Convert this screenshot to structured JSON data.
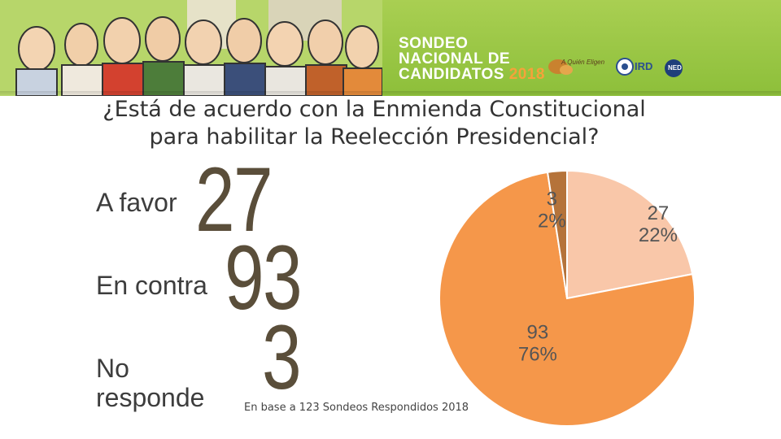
{
  "header": {
    "title_line1": "SONDEO",
    "title_line2": "NACIONAL DE",
    "title_line3": "CANDIDATOS",
    "year": "2018",
    "sponsor1": "A Quién Eligen",
    "sponsor2": "IRD",
    "sponsor3": "NED"
  },
  "question": "¿Está de acuerdo con la Enmienda Constitucional para habilitar la Reelección Presidencial?",
  "results": [
    {
      "label": "A favor",
      "value": "27"
    },
    {
      "label": "En contra",
      "value": "93"
    },
    {
      "label": "No responde",
      "value": "3"
    }
  ],
  "footnote": "En base a 123 Sondeos Respondidos 2018",
  "colors": {
    "favor": "#f9c7a9",
    "contra": "#f5974a",
    "no_responde": "#b5733a",
    "banner": "#9ccb45"
  },
  "chart_data": {
    "type": "pie",
    "title": "¿Está de acuerdo con la Enmienda Constitucional para habilitar la Reelección Presidencial?",
    "slices": [
      {
        "name": "A favor",
        "value": 27,
        "percent": "22%"
      },
      {
        "name": "En contra",
        "value": 93,
        "percent": "76%"
      },
      {
        "name": "No responde",
        "value": 3,
        "percent": "2%"
      }
    ],
    "total": 123
  }
}
